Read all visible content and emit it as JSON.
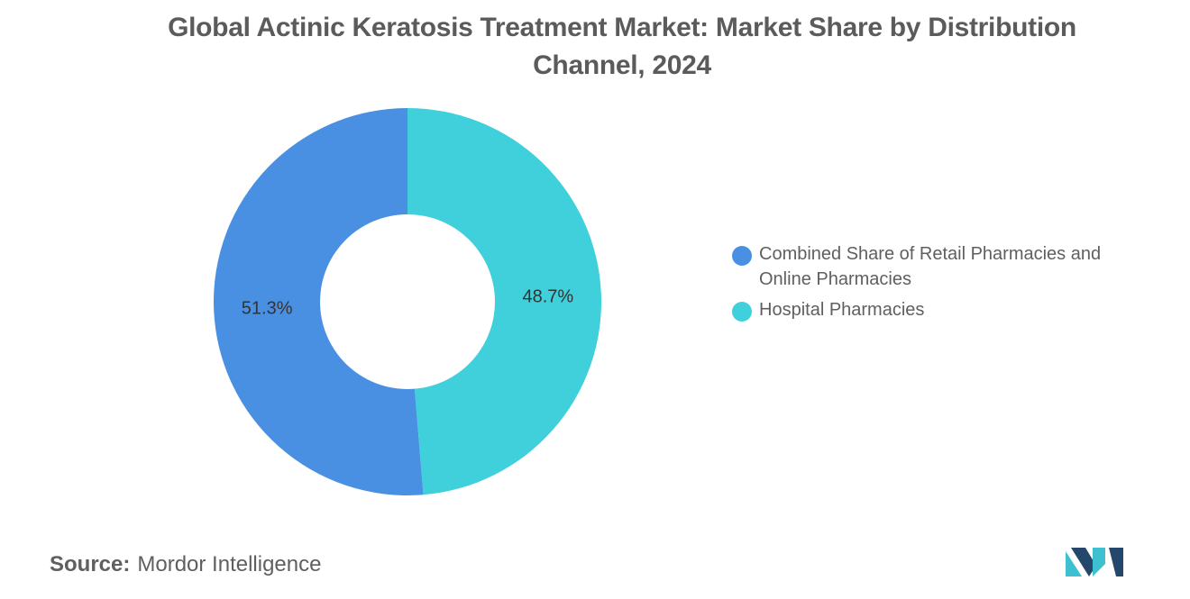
{
  "title": "Global Actinic Keratosis Treatment Market: Market Share by Distribution Channel, 2024",
  "source": {
    "label": "Source:",
    "value": "Mordor Intelligence"
  },
  "colors": {
    "series_1": "#4a90e2",
    "series_2": "#3fd0db",
    "text": "#5f5f5f",
    "logo_dark": "#24476b",
    "logo_light": "#3fc0d0"
  },
  "logo": {
    "icon": "mordor-intelligence-logo"
  },
  "chart_data": {
    "type": "pie",
    "variant": "donut",
    "title": "Global Actinic Keratosis Treatment Market: Market Share by Distribution Channel, 2024",
    "categories": [
      "Combined Share of Retail Pharmacies and Online Pharmacies",
      "Hospital Pharmacies"
    ],
    "values": [
      51.3,
      48.7
    ],
    "data_labels": [
      "51.3%",
      "48.7%"
    ],
    "legend": [
      {
        "label": "Combined Share of Retail Pharmacies and Online Pharmacies",
        "color": "#4a90e2"
      },
      {
        "label": "Hospital Pharmacies",
        "color": "#3fd0db"
      }
    ],
    "legend_position": "right"
  }
}
